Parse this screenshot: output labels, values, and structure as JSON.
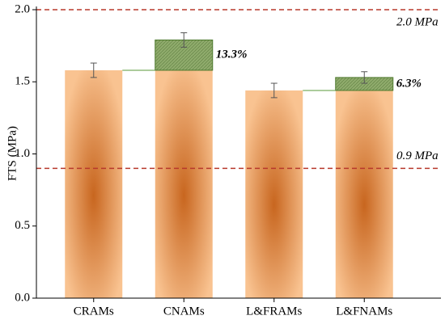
{
  "chart_data": {
    "type": "bar",
    "y_label": "FTS (MPa)",
    "categories": [
      "CRAMs",
      "CNAMs",
      "L&FRAMs",
      "L&FNAMs"
    ],
    "values": [
      1.58,
      1.79,
      1.44,
      1.53
    ],
    "errors": [
      0.05,
      0.05,
      0.05,
      0.04
    ],
    "increase_base": [
      null,
      0,
      null,
      2
    ],
    "increase_labels": [
      null,
      "13.3%",
      null,
      "6.3%"
    ],
    "color": "#f9c391",
    "center_color": "#c8661f",
    "increase_color": "#8fab6c",
    "label_color": "#3f7f1c",
    "reference_lines": [
      {
        "value": 2.0,
        "label": "2.0 MPa"
      },
      {
        "value": 0.9,
        "label": "0.9 MPa"
      }
    ],
    "reference_color": "#b8382c",
    "ylim": [
      0,
      2
    ],
    "yticks": [
      {
        "value": 0,
        "label": "0.0"
      },
      {
        "value": 0.5,
        "label": "0.5"
      },
      {
        "value": 1,
        "label": "1.0"
      },
      {
        "value": 1.5,
        "label": "1.5"
      },
      {
        "value": 2,
        "label": "2.0"
      }
    ]
  }
}
